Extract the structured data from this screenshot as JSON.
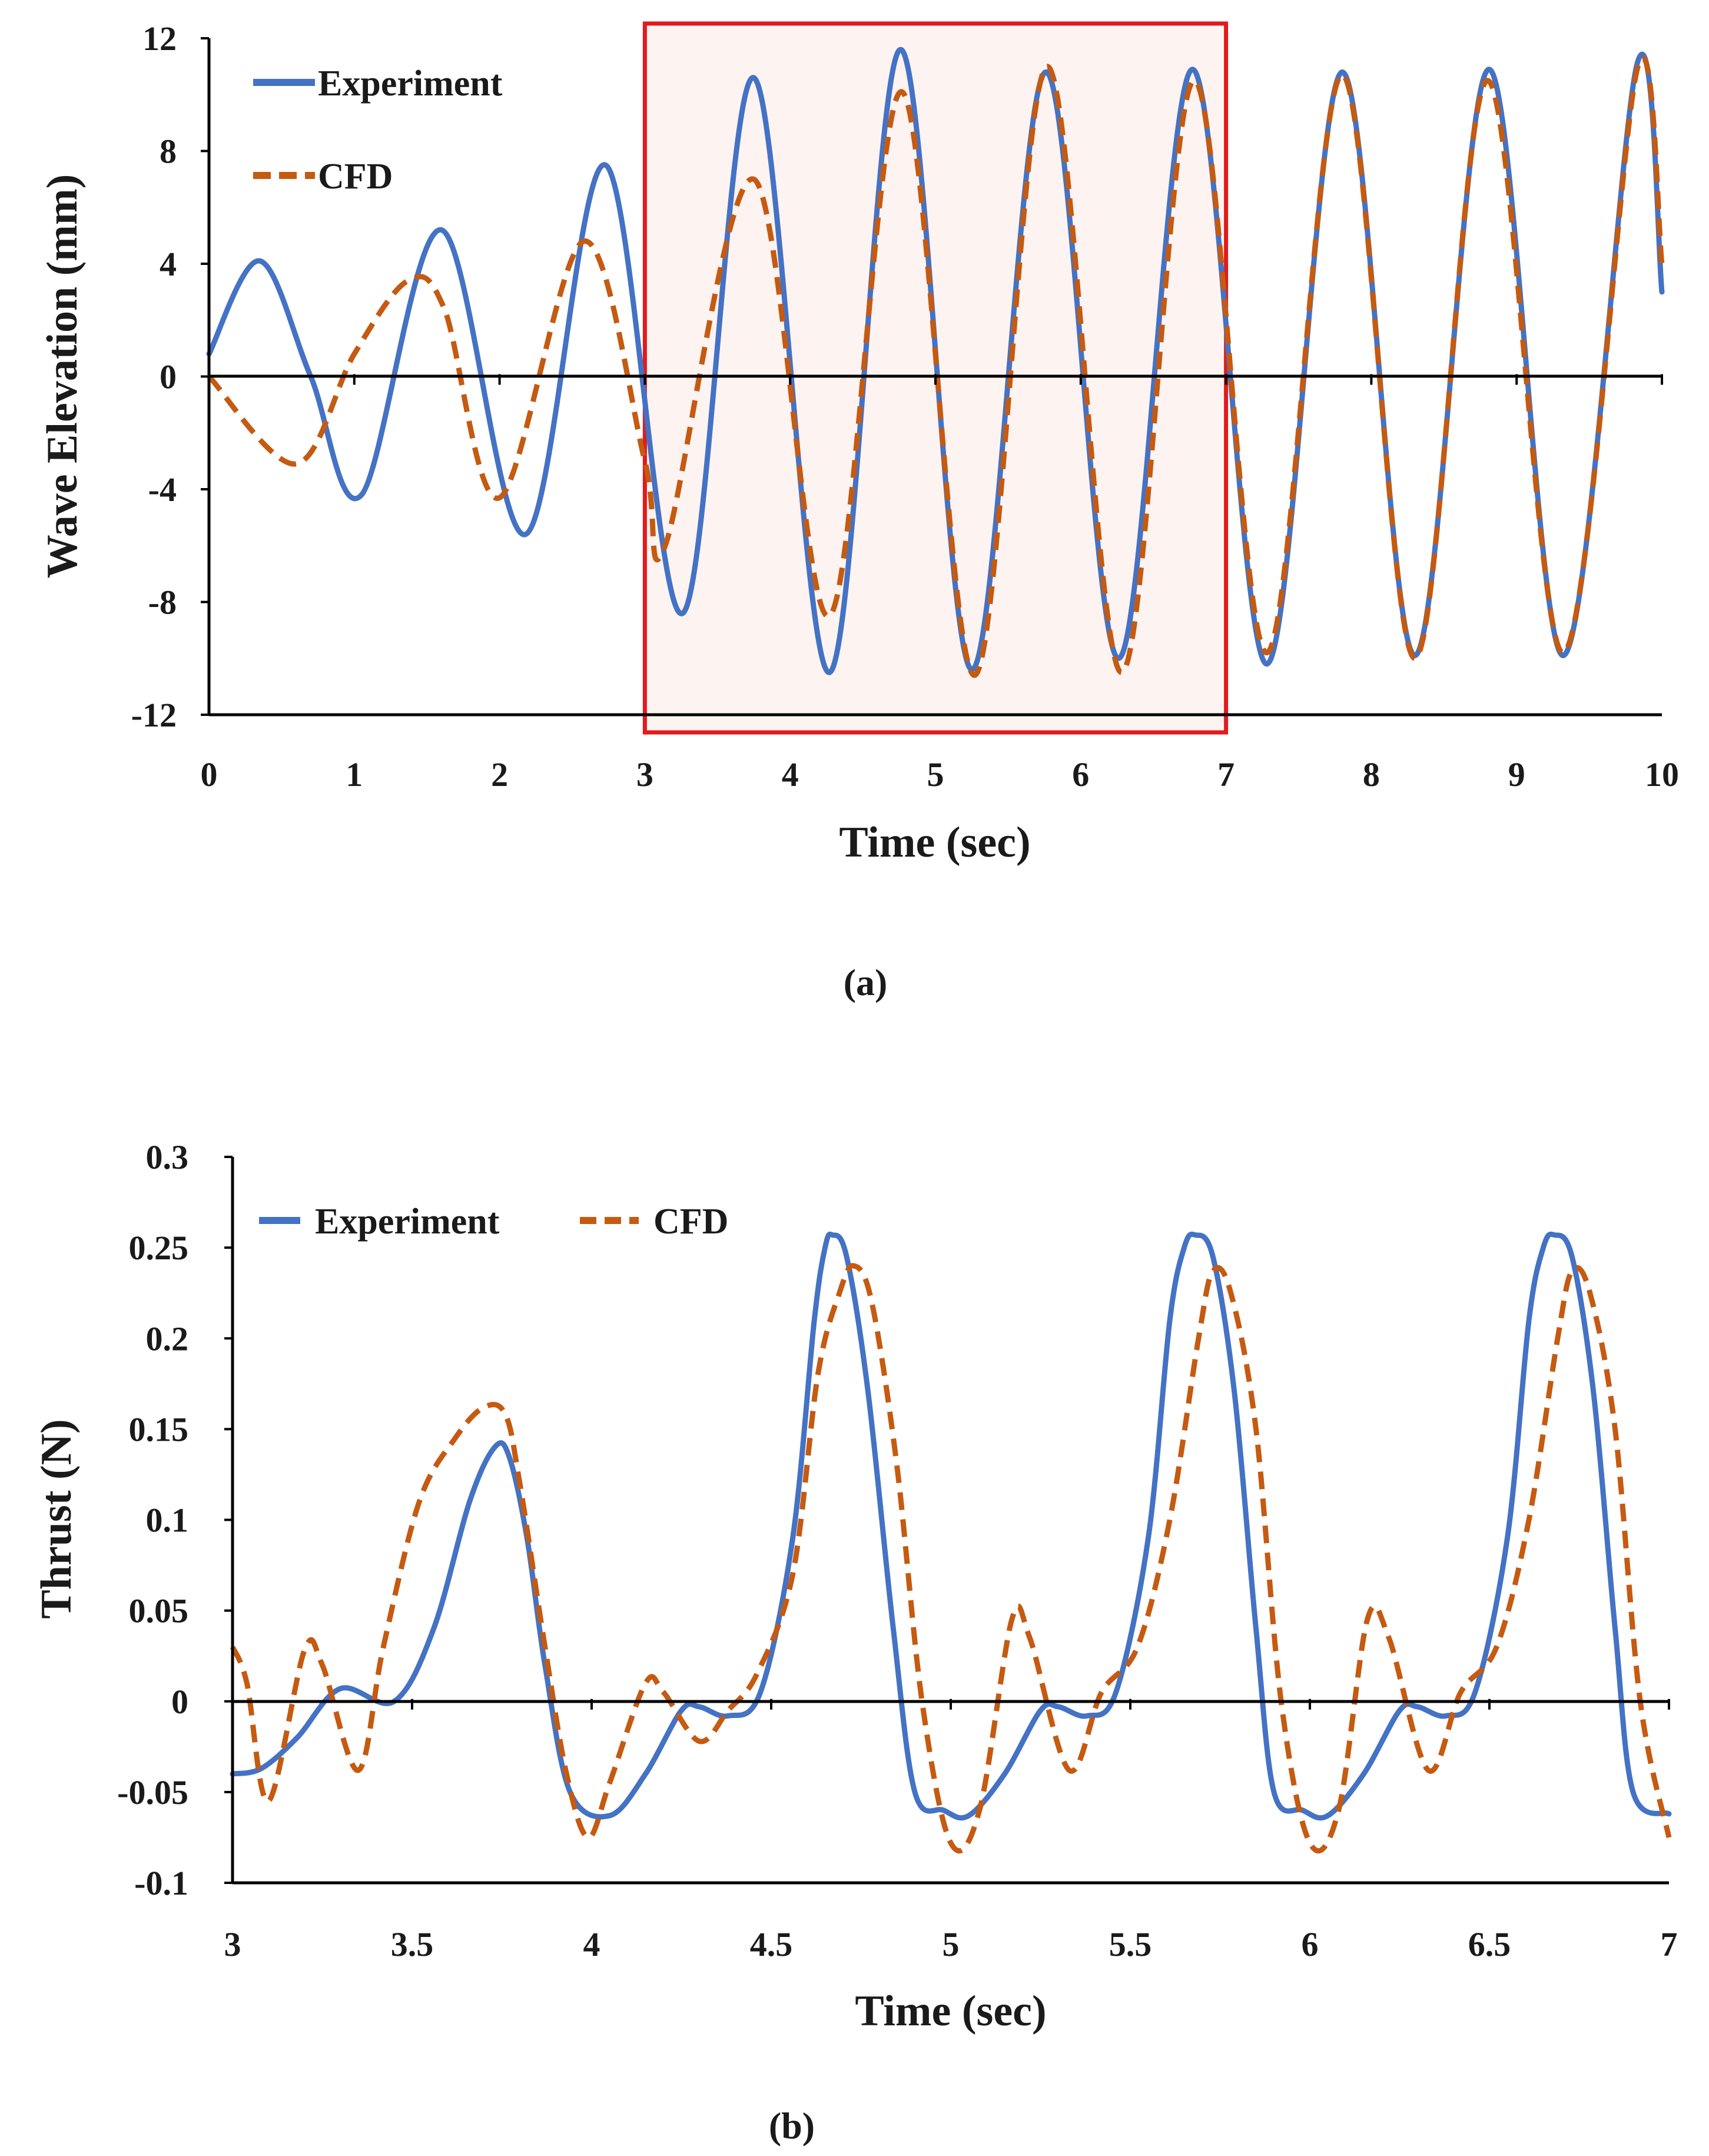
{
  "colors": {
    "experiment": "#4472C4",
    "cfd": "#C55A11",
    "highlight_border": "#E31A1C",
    "highlight_fill": "#FDF3F1",
    "axis": "#000000"
  },
  "panels": {
    "a": {
      "label": "(a)"
    },
    "b": {
      "label": "(b)"
    }
  },
  "chart_data": [
    {
      "id": "a",
      "type": "line",
      "title": "",
      "xlabel": "Time (sec)",
      "ylabel": "Wave Elevation (mm)",
      "xlim": [
        0,
        10
      ],
      "ylim": [
        -12,
        12
      ],
      "xticks": [
        0,
        1,
        2,
        3,
        4,
        5,
        6,
        7,
        8,
        9,
        10
      ],
      "yticks": [
        -12,
        -8,
        -4,
        0,
        4,
        8,
        12
      ],
      "grid": false,
      "legend": {
        "position": "top-left",
        "entries": [
          "Experiment",
          "CFD"
        ]
      },
      "highlight": {
        "x": [
          3,
          7
        ],
        "y": [
          -12,
          12
        ]
      },
      "series": [
        {
          "name": "Experiment",
          "style": "solid",
          "x": [
            0,
            0.35,
            0.7,
            1.05,
            1.6,
            2.18,
            2.73,
            3.26,
            3.75,
            4.27,
            4.76,
            5.25,
            5.76,
            6.26,
            6.77,
            7.28,
            7.8,
            8.3,
            8.81,
            9.32,
            9.83,
            10
          ],
          "y": [
            0.8,
            4.1,
            0,
            -4.2,
            5.2,
            -5.6,
            7.5,
            -8.4,
            10.6,
            -10.5,
            11.6,
            -10.4,
            10.8,
            -10,
            10.9,
            -10.2,
            10.8,
            -9.9,
            10.9,
            -9.9,
            11.1,
            3
          ]
        },
        {
          "name": "CFD",
          "style": "dashed",
          "x": [
            0,
            0.6,
            1.0,
            1.37,
            1.62,
            2.0,
            2.58,
            3.0,
            3.14,
            3.75,
            4.27,
            4.77,
            5.27,
            5.77,
            6.28,
            6.78,
            7.28,
            7.8,
            8.3,
            8.8,
            9.32,
            9.83,
            10
          ],
          "y": [
            0,
            -3.1,
            0.8,
            3.4,
            2.4,
            -4.3,
            4.8,
            -3,
            -6,
            7,
            -8.5,
            10.1,
            -10.6,
            11,
            -10.5,
            10.5,
            -9.8,
            10.7,
            -10,
            10.5,
            -9.8,
            10.9,
            4
          ]
        }
      ]
    },
    {
      "id": "b",
      "type": "line",
      "title": "",
      "xlabel": "Time (sec)",
      "ylabel": "Thrust (N)",
      "xlim": [
        3,
        7
      ],
      "ylim": [
        -0.1,
        0.3
      ],
      "xticks": [
        3,
        3.5,
        4,
        4.5,
        5,
        5.5,
        6,
        6.5,
        7
      ],
      "yticks": [
        -0.1,
        -0.05,
        0,
        0.05,
        0.1,
        0.15,
        0.2,
        0.25,
        0.3
      ],
      "grid": false,
      "legend": {
        "position": "top-left",
        "entries": [
          "Experiment",
          "CFD"
        ]
      },
      "series": [
        {
          "name": "Experiment",
          "style": "solid",
          "x": [
            3.0,
            3.08,
            3.18,
            3.3,
            3.45,
            3.56,
            3.66,
            3.73,
            3.77,
            3.82,
            3.87,
            3.94,
            4.05,
            4.15,
            4.25,
            4.3,
            4.38,
            4.47,
            4.56,
            4.62,
            4.65,
            4.67,
            4.71,
            4.77,
            4.84,
            4.9,
            4.98,
            5.05,
            5.15,
            5.25,
            5.3,
            5.38,
            5.46,
            5.55,
            5.61,
            5.65,
            5.68,
            5.73,
            5.79,
            5.85,
            5.9,
            5.98,
            6.05,
            6.15,
            6.25,
            6.3,
            6.38,
            6.46,
            6.55,
            6.61,
            6.65,
            6.68,
            6.73,
            6.79,
            6.85,
            6.9,
            7.0
          ],
          "y": [
            -0.04,
            -0.037,
            -0.02,
            0.007,
            0,
            0.04,
            0.11,
            0.14,
            0.135,
            0.09,
            0.02,
            -0.05,
            -0.063,
            -0.04,
            -0.005,
            -0.003,
            -0.008,
            0.005,
            0.09,
            0.21,
            0.25,
            0.257,
            0.245,
            0.17,
            0.04,
            -0.05,
            -0.06,
            -0.063,
            -0.04,
            -0.005,
            -0.003,
            -0.008,
            0.005,
            0.09,
            0.21,
            0.25,
            0.257,
            0.245,
            0.17,
            0.04,
            -0.05,
            -0.06,
            -0.063,
            -0.04,
            -0.005,
            -0.003,
            -0.008,
            0.005,
            0.09,
            0.21,
            0.25,
            0.257,
            0.245,
            0.17,
            0.04,
            -0.05,
            -0.062
          ]
        },
        {
          "name": "CFD",
          "style": "dashed",
          "x": [
            3.0,
            3.04,
            3.1,
            3.2,
            3.25,
            3.35,
            3.42,
            3.52,
            3.62,
            3.7,
            3.76,
            3.8,
            3.87,
            3.93,
            3.99,
            4.05,
            4.15,
            4.2,
            4.3,
            4.38,
            4.46,
            4.56,
            4.63,
            4.69,
            4.73,
            4.78,
            4.85,
            4.92,
            5.0,
            5.08,
            5.17,
            5.22,
            5.33,
            5.42,
            5.52,
            5.61,
            5.69,
            5.73,
            5.78,
            5.85,
            5.92,
            6.0,
            6.08,
            6.16,
            6.22,
            6.33,
            6.42,
            6.52,
            6.61,
            6.69,
            6.73,
            6.78,
            6.85,
            6.92,
            7.0
          ],
          "y": [
            0.03,
            0.01,
            -0.055,
            0.028,
            0.02,
            -0.038,
            0.03,
            0.11,
            0.145,
            0.162,
            0.158,
            0.12,
            0.03,
            -0.04,
            -0.075,
            -0.045,
            0.01,
            0.005,
            -0.022,
            -0.005,
            0.015,
            0.07,
            0.18,
            0.225,
            0.24,
            0.22,
            0.13,
            0.0,
            -0.078,
            -0.06,
            0.045,
            0.035,
            -0.038,
            0.005,
            0.03,
            0.1,
            0.2,
            0.237,
            0.225,
            0.15,
            0.0,
            -0.078,
            -0.06,
            0.045,
            0.035,
            -0.038,
            0.005,
            0.03,
            0.1,
            0.2,
            0.237,
            0.225,
            0.15,
            0.0,
            -0.075
          ]
        }
      ]
    }
  ]
}
